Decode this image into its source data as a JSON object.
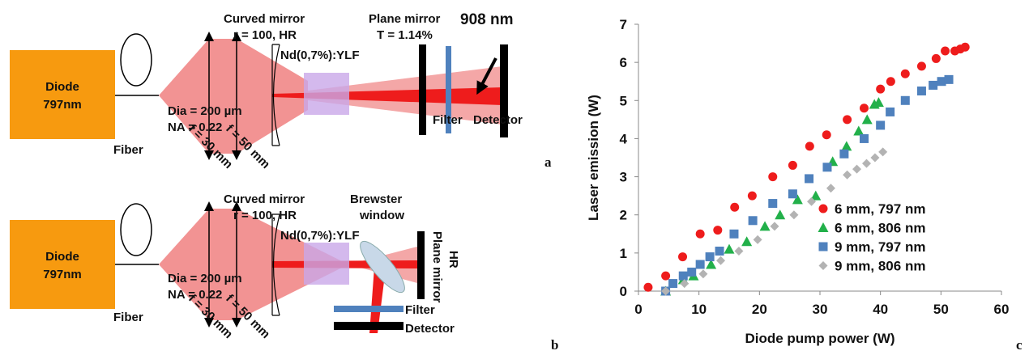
{
  "panel_labels": [
    "a",
    "b",
    "c"
  ],
  "diagram_a": {
    "diode": "Diode",
    "diode_nm": "797nm",
    "fiber_dia": "Dia = 200 µm",
    "fiber_na": "NA = 0.22",
    "fiber": "Fiber",
    "lens1": "f = 30 mm",
    "lens2": "f = 50 mm",
    "curved_mirror": "Curved mirror",
    "curved_mirror_r": "r = 100, HR",
    "crystal": "Nd(0,7%):YLF",
    "plane_mirror": "Plane mirror",
    "plane_mirror_t": "T = 1.14%",
    "wavelength": "908 nm",
    "filter": "Filter",
    "detector": "Detector"
  },
  "diagram_b": {
    "diode": "Diode",
    "diode_nm": "797nm",
    "fiber_dia": "Dia = 200 µm",
    "fiber_na": "NA = 0.22",
    "fiber": "Fiber",
    "lens1": "f = 30 mm",
    "lens2": "f = 50 mm",
    "curved_mirror": "Curved mirror",
    "curved_mirror_r": "r = 100, HR",
    "crystal": "Nd(0,7%):YLF",
    "brewster": "Brewster",
    "window": "window",
    "plane_mirror": "Plane mirror",
    "plane_mirror_hr": "HR",
    "filter": "Filter",
    "detector": "Detector"
  },
  "chart_data": {
    "type": "scatter",
    "x_label": "Diode pump power (W)",
    "y_label": "Laser emission (W)",
    "xlim": [
      0,
      60
    ],
    "xticks": [
      0,
      10,
      20,
      30,
      40,
      50,
      60
    ],
    "ylim": [
      0,
      7
    ],
    "yticks": [
      0,
      1,
      2,
      3,
      4,
      5,
      6,
      7
    ],
    "legend": "lower right",
    "series": [
      {
        "name": "6 mm, 797 nm",
        "color": "#ee1c1c",
        "marker": "circle",
        "x": [
          1.6,
          4.5,
          7.3,
          10.2,
          13.1,
          15.9,
          18.8,
          22.2,
          25.5,
          28.3,
          31.1,
          34.5,
          37.3,
          40,
          41.7,
          44.1,
          46.8,
          49.2,
          50.7,
          52.3,
          53.2,
          54
        ],
        "values": [
          0.1,
          0.4,
          0.9,
          1.5,
          1.6,
          2.2,
          2.5,
          3.0,
          3.3,
          3.8,
          4.1,
          4.5,
          4.8,
          5.3,
          5.5,
          5.7,
          5.9,
          6.1,
          6.3,
          6.3,
          6.35,
          6.4
        ]
      },
      {
        "name": "6 mm, 806 nm",
        "color": "#22b04a",
        "marker": "triangle",
        "x": [
          4.5,
          7.4,
          9.1,
          12,
          15,
          17.9,
          20.9,
          23.4,
          26.3,
          29.3,
          32.1,
          34.4,
          36.4,
          37.8,
          39,
          39.7
        ],
        "values": [
          0,
          0.3,
          0.4,
          0.7,
          1.1,
          1.3,
          1.7,
          2.0,
          2.4,
          2.5,
          3.4,
          3.8,
          4.2,
          4.5,
          4.9,
          4.95
        ]
      },
      {
        "name": "9 mm, 797 nm",
        "color": "#4f81bd",
        "marker": "square",
        "x": [
          4.5,
          5.7,
          7.4,
          8.8,
          10.2,
          11.8,
          13.4,
          15.8,
          18.9,
          22.2,
          25.5,
          28.2,
          31.2,
          34,
          37.3,
          40,
          41.6,
          44.1,
          46.8,
          48.7,
          50.1,
          51.3
        ],
        "values": [
          0,
          0.2,
          0.4,
          0.5,
          0.7,
          0.9,
          1.05,
          1.5,
          1.85,
          2.3,
          2.55,
          2.95,
          3.25,
          3.6,
          4.0,
          4.35,
          4.7,
          5.0,
          5.25,
          5.4,
          5.5,
          5.55
        ]
      },
      {
        "name": "9 mm, 806 nm",
        "color": "#b3b3b3",
        "marker": "diamond",
        "x": [
          4.5,
          7.6,
          10.7,
          13.6,
          16.6,
          19.7,
          22.5,
          25.7,
          28.6,
          31.8,
          34.5,
          36.1,
          37.7,
          39.1,
          40.4
        ],
        "values": [
          0,
          0.2,
          0.45,
          0.8,
          1.05,
          1.35,
          1.7,
          2.0,
          2.35,
          2.7,
          3.05,
          3.2,
          3.35,
          3.5,
          3.65
        ]
      }
    ]
  }
}
